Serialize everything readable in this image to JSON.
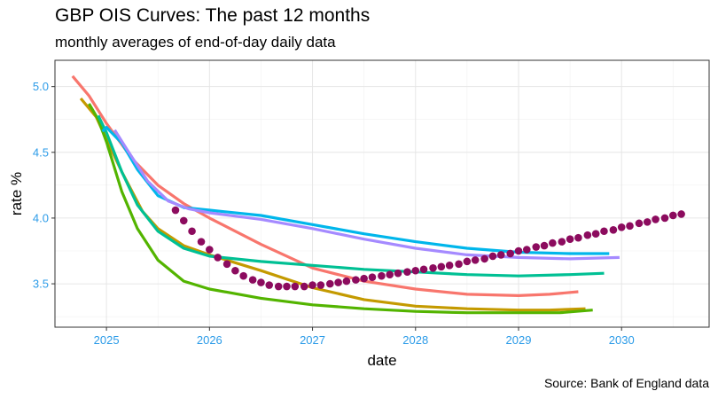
{
  "chart_data": {
    "type": "line",
    "title": "GBP OIS Curves: The past 12 months",
    "subtitle": "monthly averages of end-of-day daily data",
    "caption": "Source: Bank of England data",
    "xlabel": "date",
    "ylabel": "rate %",
    "xlim": [
      2024.5,
      2030.85
    ],
    "ylim": [
      3.17,
      5.2
    ],
    "x_ticks": [
      2025,
      2026,
      2027,
      2028,
      2029,
      2030
    ],
    "y_ticks": [
      3.5,
      4.0,
      4.5,
      5.0
    ],
    "x_tick_labels": [
      "2025",
      "2026",
      "2027",
      "2028",
      "2029",
      "2030"
    ],
    "y_tick_labels": [
      "3.5",
      "4.0",
      "4.5",
      "5.0"
    ],
    "grid": true,
    "legend": "none",
    "series": [
      {
        "color": "#f8766d",
        "style": "line",
        "points": [
          [
            2024.67,
            5.08
          ],
          [
            2024.83,
            4.93
          ],
          [
            2025.0,
            4.72
          ],
          [
            2025.25,
            4.45
          ],
          [
            2025.5,
            4.25
          ],
          [
            2025.75,
            4.11
          ],
          [
            2026.0,
            4.0
          ],
          [
            2026.5,
            3.8
          ],
          [
            2027.0,
            3.62
          ],
          [
            2027.5,
            3.52
          ],
          [
            2028.0,
            3.46
          ],
          [
            2028.5,
            3.42
          ],
          [
            2029.0,
            3.41
          ],
          [
            2029.3,
            3.42
          ],
          [
            2029.58,
            3.44
          ]
        ]
      },
      {
        "color": "#c49a00",
        "style": "line",
        "points": [
          [
            2024.75,
            4.91
          ],
          [
            2024.9,
            4.77
          ],
          [
            2025.0,
            4.6
          ],
          [
            2025.15,
            4.35
          ],
          [
            2025.35,
            4.05
          ],
          [
            2025.5,
            3.92
          ],
          [
            2025.75,
            3.79
          ],
          [
            2026.0,
            3.72
          ],
          [
            2026.5,
            3.6
          ],
          [
            2027.0,
            3.47
          ],
          [
            2027.5,
            3.38
          ],
          [
            2028.0,
            3.33
          ],
          [
            2028.5,
            3.31
          ],
          [
            2029.0,
            3.3
          ],
          [
            2029.3,
            3.3
          ],
          [
            2029.65,
            3.31
          ]
        ]
      },
      {
        "color": "#53b400",
        "style": "line",
        "points": [
          [
            2024.83,
            4.87
          ],
          [
            2024.92,
            4.75
          ],
          [
            2025.0,
            4.58
          ],
          [
            2025.15,
            4.2
          ],
          [
            2025.3,
            3.92
          ],
          [
            2025.5,
            3.68
          ],
          [
            2025.75,
            3.52
          ],
          [
            2026.0,
            3.46
          ],
          [
            2026.5,
            3.39
          ],
          [
            2027.0,
            3.34
          ],
          [
            2027.5,
            3.31
          ],
          [
            2028.0,
            3.29
          ],
          [
            2028.5,
            3.28
          ],
          [
            2029.0,
            3.28
          ],
          [
            2029.4,
            3.28
          ],
          [
            2029.72,
            3.3
          ]
        ]
      },
      {
        "color": "#00c094",
        "style": "line",
        "points": [
          [
            2024.92,
            4.78
          ],
          [
            2025.0,
            4.65
          ],
          [
            2025.15,
            4.35
          ],
          [
            2025.3,
            4.1
          ],
          [
            2025.5,
            3.9
          ],
          [
            2025.75,
            3.77
          ],
          [
            2026.0,
            3.71
          ],
          [
            2026.5,
            3.67
          ],
          [
            2027.0,
            3.64
          ],
          [
            2027.5,
            3.61
          ],
          [
            2028.0,
            3.59
          ],
          [
            2028.5,
            3.57
          ],
          [
            2029.0,
            3.56
          ],
          [
            2029.5,
            3.57
          ],
          [
            2029.83,
            3.58
          ]
        ]
      },
      {
        "color": "#00b6eb",
        "style": "line",
        "points": [
          [
            2024.96,
            4.66
          ],
          [
            2025.0,
            4.69
          ],
          [
            2025.15,
            4.57
          ],
          [
            2025.3,
            4.37
          ],
          [
            2025.5,
            4.17
          ],
          [
            2025.75,
            4.08
          ],
          [
            2026.0,
            4.06
          ],
          [
            2026.5,
            4.02
          ],
          [
            2027.0,
            3.95
          ],
          [
            2027.5,
            3.88
          ],
          [
            2028.0,
            3.82
          ],
          [
            2028.5,
            3.77
          ],
          [
            2029.0,
            3.74
          ],
          [
            2029.5,
            3.73
          ],
          [
            2029.88,
            3.73
          ]
        ]
      },
      {
        "color": "#a58aff",
        "style": "line",
        "points": [
          [
            2025.08,
            4.67
          ],
          [
            2025.2,
            4.52
          ],
          [
            2025.4,
            4.28
          ],
          [
            2025.6,
            4.13
          ],
          [
            2025.8,
            4.07
          ],
          [
            2026.0,
            4.04
          ],
          [
            2026.5,
            3.99
          ],
          [
            2027.0,
            3.92
          ],
          [
            2027.5,
            3.84
          ],
          [
            2028.0,
            3.77
          ],
          [
            2028.5,
            3.72
          ],
          [
            2029.0,
            3.7
          ],
          [
            2029.5,
            3.69
          ],
          [
            2029.98,
            3.7
          ]
        ]
      },
      {
        "color": "#8c0b5e",
        "style": "dots",
        "points": [
          [
            2025.67,
            4.06
          ],
          [
            2025.75,
            3.98
          ],
          [
            2025.83,
            3.9
          ],
          [
            2025.92,
            3.82
          ],
          [
            2026.0,
            3.76
          ],
          [
            2026.08,
            3.7
          ],
          [
            2026.17,
            3.65
          ],
          [
            2026.25,
            3.6
          ],
          [
            2026.33,
            3.56
          ],
          [
            2026.42,
            3.53
          ],
          [
            2026.5,
            3.51
          ],
          [
            2026.58,
            3.49
          ],
          [
            2026.67,
            3.48
          ],
          [
            2026.75,
            3.48
          ],
          [
            2026.83,
            3.48
          ],
          [
            2026.92,
            3.48
          ],
          [
            2027.0,
            3.49
          ],
          [
            2027.08,
            3.49
          ],
          [
            2027.17,
            3.5
          ],
          [
            2027.25,
            3.51
          ],
          [
            2027.33,
            3.52
          ],
          [
            2027.42,
            3.53
          ],
          [
            2027.5,
            3.54
          ],
          [
            2027.58,
            3.55
          ],
          [
            2027.67,
            3.56
          ],
          [
            2027.75,
            3.57
          ],
          [
            2027.83,
            3.58
          ],
          [
            2027.92,
            3.59
          ],
          [
            2028.0,
            3.6
          ],
          [
            2028.08,
            3.61
          ],
          [
            2028.17,
            3.62
          ],
          [
            2028.25,
            3.63
          ],
          [
            2028.33,
            3.64
          ],
          [
            2028.42,
            3.65
          ],
          [
            2028.5,
            3.67
          ],
          [
            2028.58,
            3.68
          ],
          [
            2028.67,
            3.69
          ],
          [
            2028.75,
            3.71
          ],
          [
            2028.83,
            3.72
          ],
          [
            2028.92,
            3.73
          ],
          [
            2029.0,
            3.75
          ],
          [
            2029.08,
            3.76
          ],
          [
            2029.17,
            3.78
          ],
          [
            2029.25,
            3.79
          ],
          [
            2029.33,
            3.81
          ],
          [
            2029.42,
            3.82
          ],
          [
            2029.5,
            3.84
          ],
          [
            2029.58,
            3.85
          ],
          [
            2029.67,
            3.87
          ],
          [
            2029.75,
            3.88
          ],
          [
            2029.83,
            3.9
          ],
          [
            2029.92,
            3.91
          ],
          [
            2030.0,
            3.93
          ],
          [
            2030.08,
            3.94
          ],
          [
            2030.17,
            3.96
          ],
          [
            2030.25,
            3.97
          ],
          [
            2030.33,
            3.99
          ],
          [
            2030.42,
            4.0
          ],
          [
            2030.5,
            4.02
          ],
          [
            2030.58,
            4.03
          ]
        ]
      }
    ]
  }
}
